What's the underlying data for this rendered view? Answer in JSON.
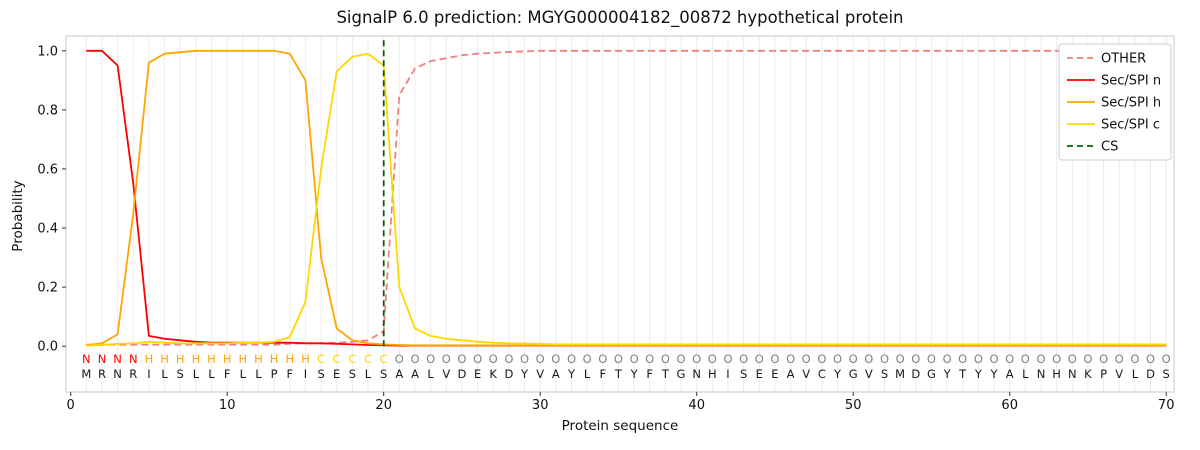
{
  "chart_data": {
    "type": "line",
    "title": "SignalP 6.0 prediction: MGYG000004182_00872 hypothetical protein",
    "xlabel": "Protein sequence",
    "ylabel": "Probability",
    "xlim": [
      -0.3,
      70.5
    ],
    "ylim": [
      -0.155,
      1.05
    ],
    "xticks": [
      0,
      10,
      20,
      30,
      40,
      50,
      60,
      70
    ],
    "ytick_labels": [
      "0.0",
      "0.2",
      "0.4",
      "0.6",
      "0.8",
      "1.0"
    ],
    "grid": {
      "vertical_per_residue": true,
      "color": "#ececec"
    },
    "legend_position": "upper right",
    "sequence": "MRNRILSLLFLLPFISESLSAALVDEKDYVAYLFTYFTGNHISEEAVCYGVSMDGYTYYALNHNKPVLDS",
    "region_labels": "NNNNHHHHHHHHHHHCCCCCOOOOOOOOOOOOOOOOOOOOOOOOOOOOOOOOOOOOOOOOOOOOOOOOOO",
    "region_colors": {
      "N": "#ff0000",
      "H": "#ffa500",
      "C": "#ffd700",
      "O": "#808080"
    },
    "sequence_color": "#1a1a1a",
    "series": [
      {
        "name": "OTHER",
        "color": "#f08080",
        "dashed": true,
        "values": [
          0.005,
          0.005,
          0.005,
          0.005,
          0.005,
          0.005,
          0.005,
          0.005,
          0.005,
          0.005,
          0.005,
          0.005,
          0.005,
          0.008,
          0.01,
          0.01,
          0.012,
          0.015,
          0.02,
          0.05,
          0.85,
          0.94,
          0.965,
          0.975,
          0.985,
          0.99,
          0.993,
          0.996,
          0.998,
          1.0,
          1.0,
          1.0,
          1.0,
          1.0,
          1.0,
          1.0,
          1.0,
          1.0,
          1.0,
          1.0,
          1.0,
          1.0,
          1.0,
          1.0,
          1.0,
          1.0,
          1.0,
          1.0,
          1.0,
          1.0,
          1.0,
          1.0,
          1.0,
          1.0,
          1.0,
          1.0,
          1.0,
          1.0,
          1.0,
          1.0,
          1.0,
          1.0,
          1.0,
          1.0,
          1.0,
          1.0,
          1.0,
          1.0,
          1.0,
          1.0
        ]
      },
      {
        "name": "Sec/SPI n",
        "color": "#ff0000",
        "dashed": false,
        "values": [
          1.0,
          1.0,
          0.95,
          0.55,
          0.035,
          0.025,
          0.02,
          0.015,
          0.012,
          0.012,
          0.012,
          0.012,
          0.012,
          0.012,
          0.01,
          0.01,
          0.008,
          0.006,
          0.004,
          0.003,
          0.002,
          0.002,
          0.002,
          0.002,
          0.002,
          0.002,
          0.002,
          0.002,
          0.002,
          0.002,
          0.002,
          0.002,
          0.002,
          0.002,
          0.002,
          0.002,
          0.002,
          0.002,
          0.002,
          0.002,
          0.002,
          0.002,
          0.002,
          0.002,
          0.002,
          0.002,
          0.002,
          0.002,
          0.002,
          0.002,
          0.002,
          0.002,
          0.002,
          0.002,
          0.002,
          0.002,
          0.002,
          0.002,
          0.002,
          0.002,
          0.002,
          0.002,
          0.002,
          0.002,
          0.002,
          0.002,
          0.002,
          0.002,
          0.002,
          0.002
        ]
      },
      {
        "name": "Sec/SPI h",
        "color": "#ffa500",
        "dashed": false,
        "values": [
          0.003,
          0.01,
          0.04,
          0.45,
          0.96,
          0.99,
          0.995,
          1.0,
          1.0,
          1.0,
          1.0,
          1.0,
          1.0,
          0.99,
          0.9,
          0.3,
          0.06,
          0.02,
          0.01,
          0.006,
          0.004,
          0.003,
          0.003,
          0.003,
          0.003,
          0.003,
          0.003,
          0.003,
          0.003,
          0.003,
          0.003,
          0.003,
          0.003,
          0.003,
          0.003,
          0.003,
          0.003,
          0.003,
          0.003,
          0.003,
          0.003,
          0.003,
          0.003,
          0.003,
          0.003,
          0.003,
          0.003,
          0.003,
          0.003,
          0.003,
          0.003,
          0.003,
          0.003,
          0.003,
          0.003,
          0.003,
          0.003,
          0.003,
          0.003,
          0.003,
          0.003,
          0.003,
          0.003,
          0.003,
          0.003,
          0.003,
          0.003,
          0.003,
          0.003,
          0.003
        ]
      },
      {
        "name": "Sec/SPI c",
        "color": "#ffd700",
        "dashed": false,
        "values": [
          0.002,
          0.004,
          0.008,
          0.01,
          0.015,
          0.012,
          0.01,
          0.01,
          0.01,
          0.01,
          0.012,
          0.012,
          0.015,
          0.03,
          0.15,
          0.6,
          0.93,
          0.98,
          0.99,
          0.95,
          0.2,
          0.06,
          0.035,
          0.025,
          0.02,
          0.015,
          0.012,
          0.01,
          0.009,
          0.008,
          0.006,
          0.006,
          0.006,
          0.006,
          0.006,
          0.006,
          0.006,
          0.006,
          0.006,
          0.006,
          0.006,
          0.006,
          0.006,
          0.006,
          0.006,
          0.006,
          0.006,
          0.006,
          0.006,
          0.006,
          0.006,
          0.006,
          0.006,
          0.006,
          0.006,
          0.006,
          0.006,
          0.006,
          0.006,
          0.006,
          0.006,
          0.006,
          0.006,
          0.006,
          0.006,
          0.006,
          0.006,
          0.006,
          0.006,
          0.006
        ]
      }
    ],
    "cs": {
      "name": "CS",
      "color": "#006400",
      "dashed": true,
      "x": 20
    }
  }
}
